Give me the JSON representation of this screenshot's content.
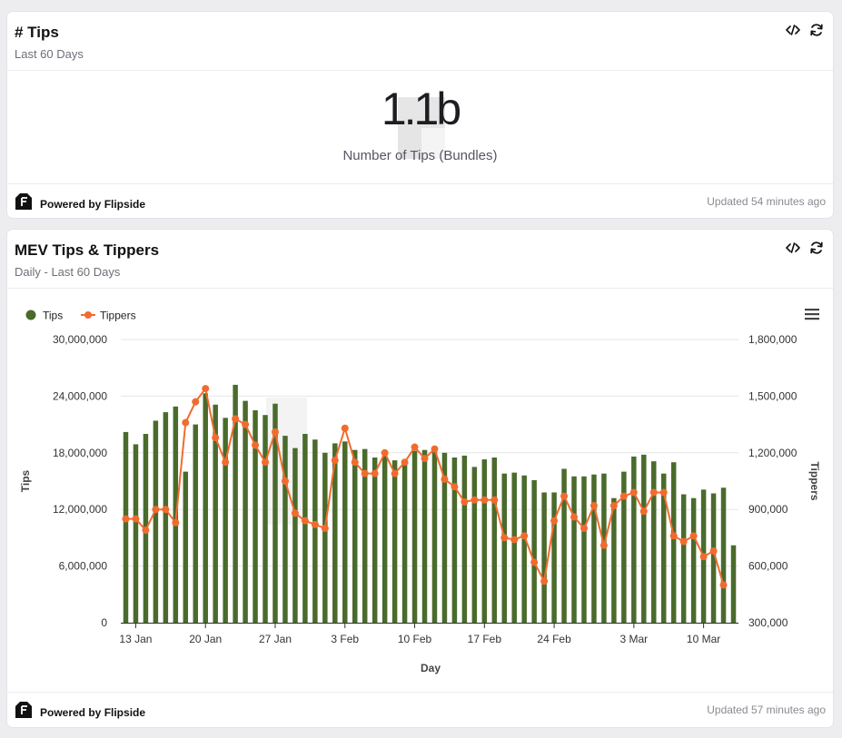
{
  "card1": {
    "title": "# Tips",
    "subtitle": "Last 60 Days",
    "big_number": "1.1b",
    "big_label": "Number of Tips (Bundles)",
    "footer_brand": "Powered by Flipside",
    "updated": "Updated 54 minutes ago"
  },
  "card2": {
    "title": "MEV Tips & Tippers",
    "subtitle": "Daily - Last 60 Days",
    "footer_brand": "Powered by Flipside",
    "updated": "Updated 57 minutes ago"
  },
  "icons": {
    "embed": "code-icon",
    "refresh": "refresh-icon",
    "menu": "hamburger-menu-icon",
    "brand": "flipside-logo-icon"
  },
  "colors": {
    "tips": "#4a6b2c",
    "tippers": "#f26b2e"
  },
  "chart_data": {
    "type": "bar",
    "x": [
      "2024-01-12",
      "2024-01-13",
      "2024-01-14",
      "2024-01-15",
      "2024-01-16",
      "2024-01-17",
      "2024-01-18",
      "2024-01-19",
      "2024-01-20",
      "2024-01-21",
      "2024-01-22",
      "2024-01-23",
      "2024-01-24",
      "2024-01-25",
      "2024-01-26",
      "2024-01-27",
      "2024-01-28",
      "2024-01-29",
      "2024-01-30",
      "2024-01-31",
      "2024-02-01",
      "2024-02-02",
      "2024-02-03",
      "2024-02-04",
      "2024-02-05",
      "2024-02-06",
      "2024-02-07",
      "2024-02-08",
      "2024-02-09",
      "2024-02-10",
      "2024-02-11",
      "2024-02-12",
      "2024-02-13",
      "2024-02-14",
      "2024-02-15",
      "2024-02-16",
      "2024-02-17",
      "2024-02-18",
      "2024-02-19",
      "2024-02-20",
      "2024-02-21",
      "2024-02-22",
      "2024-02-23",
      "2024-02-24",
      "2024-02-25",
      "2024-02-26",
      "2024-02-27",
      "2024-02-28",
      "2024-02-29",
      "2024-03-01",
      "2024-03-02",
      "2024-03-03",
      "2024-03-04",
      "2024-03-05",
      "2024-03-06",
      "2024-03-07",
      "2024-03-08",
      "2024-03-09",
      "2024-03-10",
      "2024-03-11",
      "2024-03-12"
    ],
    "x_ticks": [
      "13 Jan",
      "20 Jan",
      "27 Jan",
      "3 Feb",
      "10 Feb",
      "17 Feb",
      "24 Feb",
      "3 Mar",
      "10 Mar"
    ],
    "x_tick_dates": [
      "2024-01-13",
      "2024-01-20",
      "2024-01-27",
      "2024-02-03",
      "2024-02-10",
      "2024-02-17",
      "2024-02-24",
      "2024-03-03",
      "2024-03-10"
    ],
    "xlabel": "Day",
    "ylabel": "Tips",
    "y2label": "Tippers",
    "ylim": [
      0,
      30000000
    ],
    "y2lim": [
      300000,
      1800000
    ],
    "y_ticks": [
      "0",
      "6,000,000",
      "12,000,000",
      "18,000,000",
      "24,000,000",
      "30,000,000"
    ],
    "y2_ticks": [
      "300,000",
      "600,000",
      "900,000",
      "1,200,000",
      "1,500,000",
      "1,800,000"
    ],
    "grid": true,
    "legend": "top-left",
    "series": [
      {
        "name": "Tips",
        "type": "bar",
        "axis": "left",
        "values": [
          20200000,
          18900000,
          20000000,
          21400000,
          22300000,
          22900000,
          16000000,
          21000000,
          24300000,
          23100000,
          21700000,
          25200000,
          23500000,
          22500000,
          22000000,
          23200000,
          19800000,
          18500000,
          20000000,
          19400000,
          18000000,
          19000000,
          19200000,
          18300000,
          18400000,
          17500000,
          18000000,
          17200000,
          17200000,
          18200000,
          18300000,
          18500000,
          18000000,
          17500000,
          17700000,
          16500000,
          17300000,
          17500000,
          15800000,
          15900000,
          15600000,
          15100000,
          13800000,
          13800000,
          16300000,
          15500000,
          15500000,
          15700000,
          15800000,
          13200000,
          16000000,
          17600000,
          17800000,
          17100000,
          15800000,
          17000000,
          13600000,
          13200000,
          14100000,
          13700000,
          14300000
        ],
        "values_extra_last": 8200000
      },
      {
        "name": "Tippers",
        "type": "line",
        "axis": "right",
        "values": [
          850000,
          850000,
          790000,
          900000,
          900000,
          830000,
          1360000,
          1470000,
          1540000,
          1280000,
          1150000,
          1380000,
          1350000,
          1240000,
          1150000,
          1310000,
          1050000,
          880000,
          840000,
          820000,
          800000,
          1160000,
          1330000,
          1150000,
          1090000,
          1090000,
          1200000,
          1090000,
          1150000,
          1230000,
          1170000,
          1220000,
          1060000,
          1020000,
          940000,
          950000,
          950000,
          950000,
          750000,
          740000,
          760000,
          620000,
          520000,
          840000,
          970000,
          860000,
          800000,
          920000,
          710000,
          920000,
          970000,
          990000,
          890000,
          990000,
          990000,
          760000,
          730000,
          760000,
          650000,
          680000,
          500000
        ]
      }
    ]
  }
}
